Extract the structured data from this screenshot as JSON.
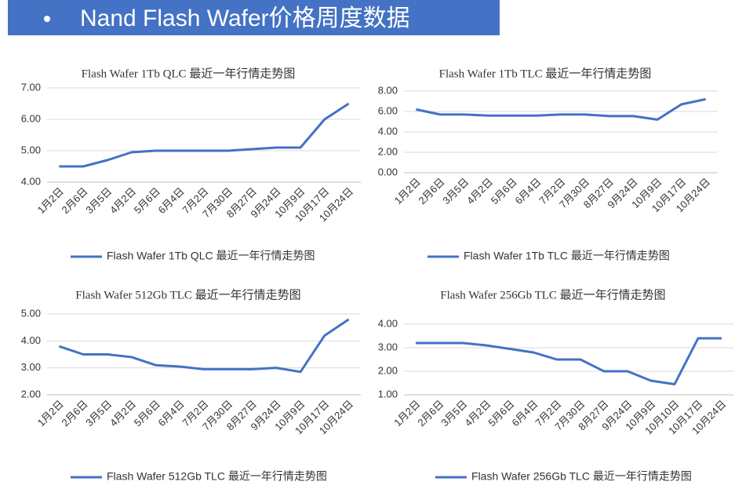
{
  "header": {
    "title": "Nand Flash Wafer价格周度数据"
  },
  "chart_data": [
    {
      "type": "line",
      "title": "Flash Wafer 1Tb QLC 最近一年行情走势图",
      "categories": [
        "1月2日",
        "2月6日",
        "3月5日",
        "4月2日",
        "5月6日",
        "6月4日",
        "7月2日",
        "7月30日",
        "8月27日",
        "9月24日",
        "10月9日",
        "10月17日",
        "10月24日"
      ],
      "series": [
        {
          "name": "Flash Wafer 1Tb QLC 最近一年行情走势图",
          "color": "#4472c4",
          "values": [
            4.5,
            4.5,
            4.7,
            4.95,
            5.0,
            5.0,
            5.0,
            5.0,
            5.05,
            5.1,
            5.1,
            6.0,
            6.5
          ]
        }
      ],
      "ylim": [
        4,
        7
      ],
      "yticks": [
        {
          "value": 4,
          "label": "4.00"
        },
        {
          "value": 5,
          "label": "5.00"
        },
        {
          "value": 6,
          "label": "6.00"
        },
        {
          "value": 7,
          "label": "7.00"
        }
      ],
      "grid": true,
      "legend": "bottom"
    },
    {
      "type": "line",
      "title": "Flash Wafer 1Tb TLC 最近一年行情走势图",
      "categories": [
        "1月2日",
        "2月6日",
        "3月5日",
        "4月2日",
        "5月6日",
        "6月4日",
        "7月2日",
        "7月30日",
        "8月27日",
        "9月24日",
        "10月9日",
        "10月17日",
        "10月24日"
      ],
      "series": [
        {
          "name": "Flash Wafer 1Tb TLC 最近一年行情走势图",
          "color": "#4472c4",
          "values": [
            6.2,
            5.7,
            5.7,
            5.6,
            5.6,
            5.6,
            5.7,
            5.7,
            5.55,
            5.55,
            5.2,
            6.7,
            7.2
          ]
        }
      ],
      "ylim": [
        0,
        8
      ],
      "yticks": [
        {
          "value": 0,
          "label": "0.00"
        },
        {
          "value": 2,
          "label": "2.00"
        },
        {
          "value": 4,
          "label": "4.00"
        },
        {
          "value": 6,
          "label": "6.00"
        },
        {
          "value": 8,
          "label": "8.00"
        }
      ],
      "grid": true,
      "legend": "bottom"
    },
    {
      "type": "line",
      "title": "Flash Wafer 512Gb TLC 最近一年行情走势图",
      "categories": [
        "1月2日",
        "2月6日",
        "3月5日",
        "4月2日",
        "5月6日",
        "6月4日",
        "7月2日",
        "7月30日",
        "8月27日",
        "9月24日",
        "10月9日",
        "10月17日",
        "10月24日"
      ],
      "series": [
        {
          "name": "Flash Wafer 512Gb TLC 最近一年行情走势图",
          "color": "#4472c4",
          "values": [
            3.8,
            3.5,
            3.5,
            3.4,
            3.1,
            3.05,
            2.95,
            2.95,
            2.95,
            3.0,
            2.85,
            4.2,
            4.8
          ]
        }
      ],
      "ylim": [
        2,
        5
      ],
      "yticks": [
        {
          "value": 2,
          "label": "2.00"
        },
        {
          "value": 3,
          "label": "3.00"
        },
        {
          "value": 4,
          "label": "4.00"
        },
        {
          "value": 5,
          "label": "5.00"
        }
      ],
      "grid": true,
      "legend": "bottom"
    },
    {
      "type": "line",
      "title": "Flash Wafer 256Gb TLC 最近一年行情走势图",
      "categories": [
        "1月2日",
        "2月6日",
        "3月5日",
        "4月2日",
        "5月6日",
        "6月4日",
        "7月2日",
        "7月30日",
        "8月27日",
        "9月24日",
        "10月9日",
        "10月10日",
        "10月17日",
        "10月24日"
      ],
      "series": [
        {
          "name": "Flash Wafer 256Gb TLC 最近一年行情走势图",
          "color": "#4472c4",
          "values": [
            3.2,
            3.2,
            3.2,
            3.1,
            2.95,
            2.8,
            2.5,
            2.5,
            2.0,
            2.0,
            1.6,
            1.45,
            3.4,
            3.4
          ]
        }
      ],
      "ylim": [
        1,
        4
      ],
      "yticks": [
        {
          "value": 1,
          "label": "1.00"
        },
        {
          "value": 2,
          "label": "2.00"
        },
        {
          "value": 3,
          "label": "3.00"
        },
        {
          "value": 4,
          "label": "4.00"
        }
      ],
      "grid": true,
      "legend": "bottom"
    }
  ]
}
